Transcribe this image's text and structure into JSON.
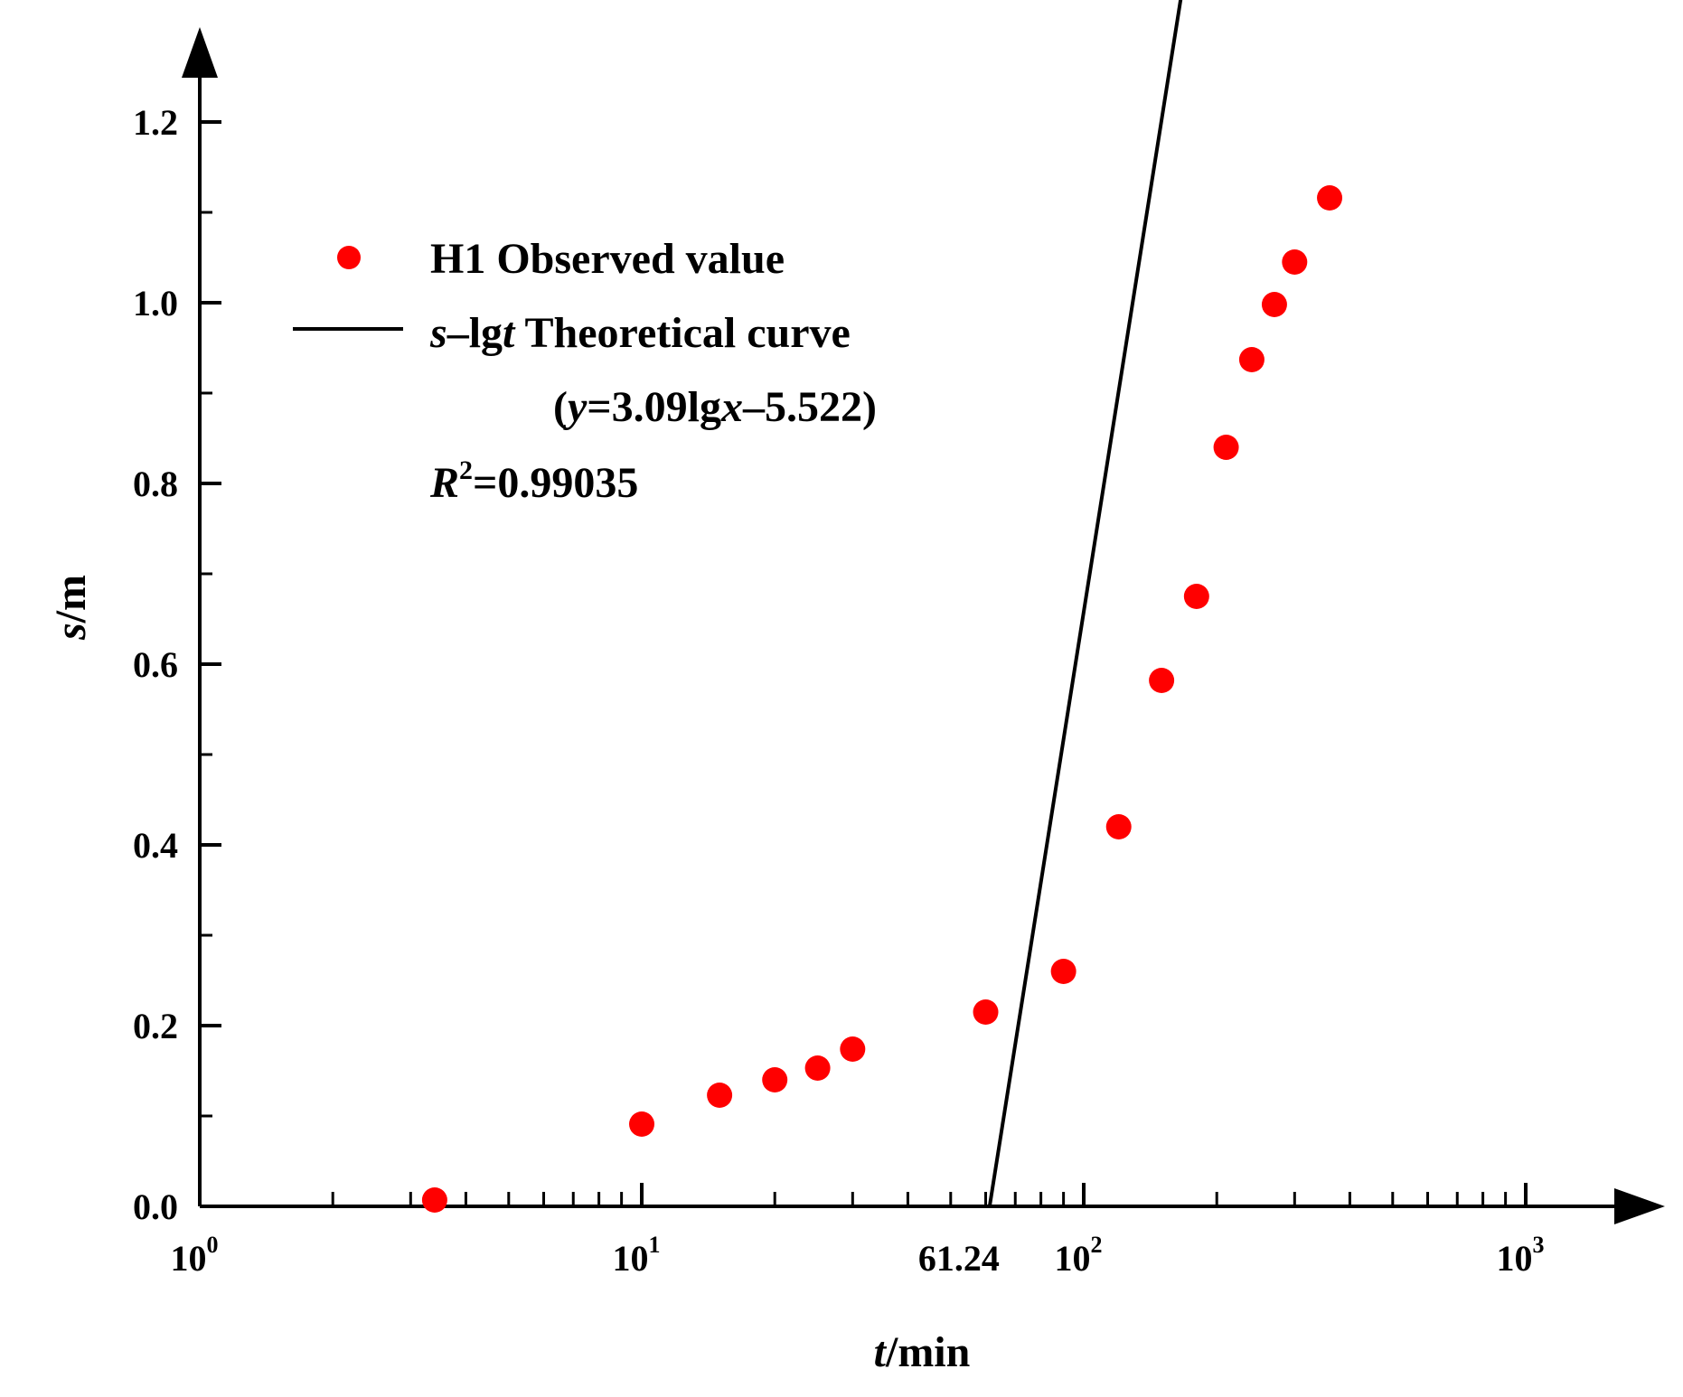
{
  "chart_data": {
    "type": "scatter",
    "x_scale": "log",
    "xlim": [
      1,
      1300
    ],
    "ylim": [
      0,
      1.27
    ],
    "x_ticks": [
      {
        "value": 1,
        "base": "10",
        "exp": "0"
      },
      {
        "value": 10,
        "base": "10",
        "exp": "1"
      },
      {
        "value": 100,
        "base": "10",
        "exp": "2"
      },
      {
        "value": 1000,
        "base": "10",
        "exp": "3"
      }
    ],
    "x_extra_tick": {
      "value": 61.24,
      "label": "61.24"
    },
    "y_ticks": [
      {
        "value": 0.0,
        "label": "0.0"
      },
      {
        "value": 0.2,
        "label": "0.2"
      },
      {
        "value": 0.4,
        "label": "0.4"
      },
      {
        "value": 0.6,
        "label": "0.6"
      },
      {
        "value": 0.8,
        "label": "0.8"
      },
      {
        "value": 1.0,
        "label": "1.0"
      },
      {
        "value": 1.2,
        "label": "1.2"
      }
    ],
    "xlabel": {
      "italic": "t",
      "rest": "/min"
    },
    "ylabel": {
      "italic": "s",
      "rest": "/m"
    },
    "series": [
      {
        "name": "H1 Observed value",
        "type": "scatter",
        "color": "#ff0000",
        "points": [
          {
            "x": 3.4,
            "y": 0.007
          },
          {
            "x": 10.0,
            "y": 0.091
          },
          {
            "x": 15.0,
            "y": 0.123
          },
          {
            "x": 20.0,
            "y": 0.14
          },
          {
            "x": 25.0,
            "y": 0.153
          },
          {
            "x": 30.0,
            "y": 0.174
          },
          {
            "x": 60.0,
            "y": 0.215
          },
          {
            "x": 90.0,
            "y": 0.26
          },
          {
            "x": 120.0,
            "y": 0.42
          },
          {
            "x": 150.0,
            "y": 0.582
          },
          {
            "x": 180.0,
            "y": 0.675
          },
          {
            "x": 210.0,
            "y": 0.84
          },
          {
            "x": 240.0,
            "y": 0.937
          },
          {
            "x": 270.0,
            "y": 0.998
          },
          {
            "x": 300.0,
            "y": 1.045
          },
          {
            "x": 360.0,
            "y": 1.116
          }
        ]
      },
      {
        "name": "s–lgt Theoretical curve",
        "type": "line",
        "color": "#000000",
        "equation": {
          "slope": 3.09,
          "intercept": -5.522
        },
        "x_range": [
          61.24,
          372
        ]
      }
    ],
    "legend": {
      "placement": "top-left",
      "entry1": "H1 Observed value",
      "entry2_italic": "s",
      "entry2_dash": "–lg",
      "entry2_t": "t",
      "entry2_rest": " Theoretical curve",
      "equation_open": "(",
      "equation_y": "y",
      "equation_mid": "=3.09lg",
      "equation_x": "x",
      "equation_tail": "–5.522)",
      "r2_R": "R",
      "r2_sup": "2",
      "r2_value": "=0.99035"
    },
    "marker_color": "#ff0000",
    "line_color": "#000000"
  }
}
